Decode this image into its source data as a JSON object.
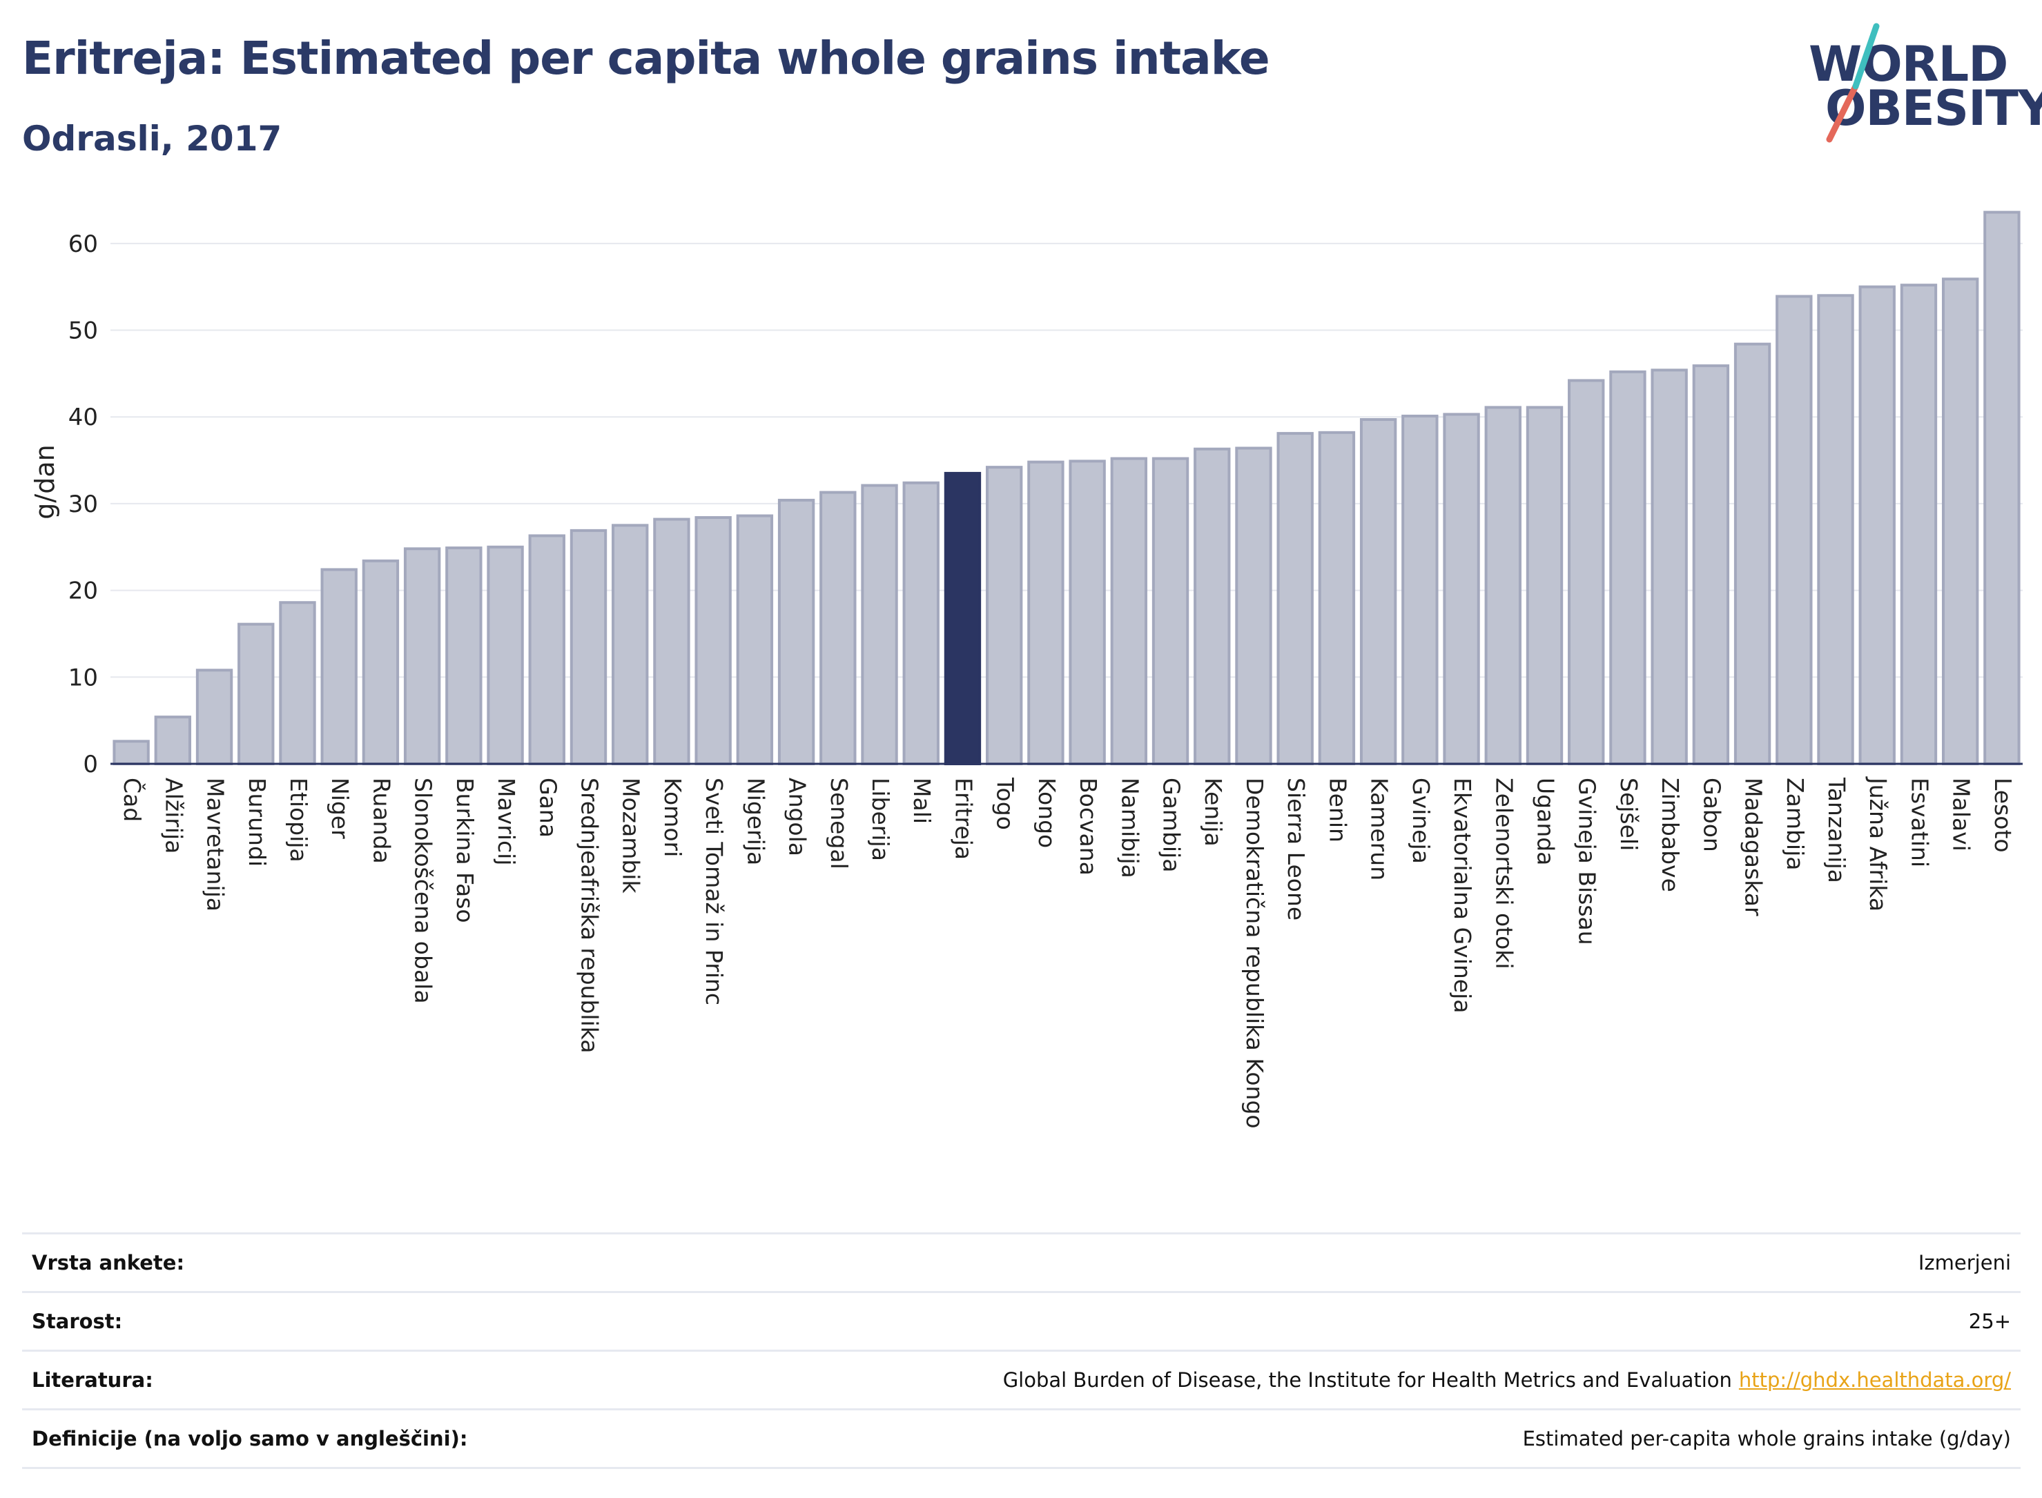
{
  "title": "Eritreja: Estimated per capita whole grains intake",
  "subtitle": "Odrasli, 2017",
  "logo": {
    "line1": "WORLD",
    "line2": "OBESITY",
    "colors": {
      "text": "#2b3a67",
      "slash_red": "#e4685a",
      "slash_teal": "#3fbfbf"
    }
  },
  "colors": {
    "bar": "#bfc3d1",
    "bar_edge": "#a3a8bd",
    "highlight": "#2b3562",
    "grid": "#e6e8ee",
    "axis": "#2b3562"
  },
  "chart_data": {
    "type": "bar",
    "ylabel": "g/dan",
    "ylim": [
      0,
      65
    ],
    "yticks": [
      0,
      10,
      20,
      30,
      40,
      50,
      60
    ],
    "grid": true,
    "highlight": "Eritreja",
    "categories": [
      "Čad",
      "Alžirija",
      "Mavretanija",
      "Burundi",
      "Etiopija",
      "Niger",
      "Ruanda",
      "Slonokoščena obala",
      "Burkina Faso",
      "Mavricij",
      "Gana",
      "Srednjeafriška republika",
      "Mozambik",
      "Komori",
      "Sveti Tomaž in Princ",
      "Nigerija",
      "Angola",
      "Senegal",
      "Liberija",
      "Mali",
      "Eritreja",
      "Togo",
      "Kongo",
      "Bocvana",
      "Namibija",
      "Gambija",
      "Kenija",
      "Demokratična republika Kongo",
      "Sierra Leone",
      "Benin",
      "Kamerun",
      "Gvineja",
      "Ekvatorialna Gvineja",
      "Zelenortski otoki",
      "Uganda",
      "Gvineja Bissau",
      "Sejšeli",
      "Zimbabve",
      "Gabon",
      "Madagaskar",
      "Zambija",
      "Tanzanija",
      "Južna Afrika",
      "Esvatini",
      "Malavi",
      "Lesoto"
    ],
    "values": [
      2.6,
      5.4,
      10.8,
      16.1,
      18.6,
      22.4,
      23.4,
      24.8,
      24.9,
      25.0,
      26.3,
      26.9,
      27.5,
      28.2,
      28.4,
      28.6,
      30.4,
      31.3,
      32.1,
      32.4,
      33.5,
      34.2,
      34.8,
      34.9,
      35.2,
      35.2,
      36.3,
      36.4,
      38.1,
      38.2,
      39.7,
      40.1,
      40.3,
      41.1,
      41.1,
      44.2,
      45.2,
      45.4,
      45.9,
      48.4,
      53.9,
      54.0,
      55.0,
      55.2,
      55.9,
      63.6
    ]
  },
  "info": {
    "survey_label": "Vrsta ankete:",
    "survey_value": "Izmerjeni",
    "age_label": "Starost:",
    "age_value": "25+",
    "ref_label": "Literatura:",
    "ref_value": "Global Burden of Disease, the Institute for Health Metrics and Evaluation",
    "ref_link": "http://ghdx.healthdata.org/",
    "def_label": "Definicije (na voljo samo v angleščini):",
    "def_value": "Estimated per-capita whole grains intake (g/day)"
  }
}
